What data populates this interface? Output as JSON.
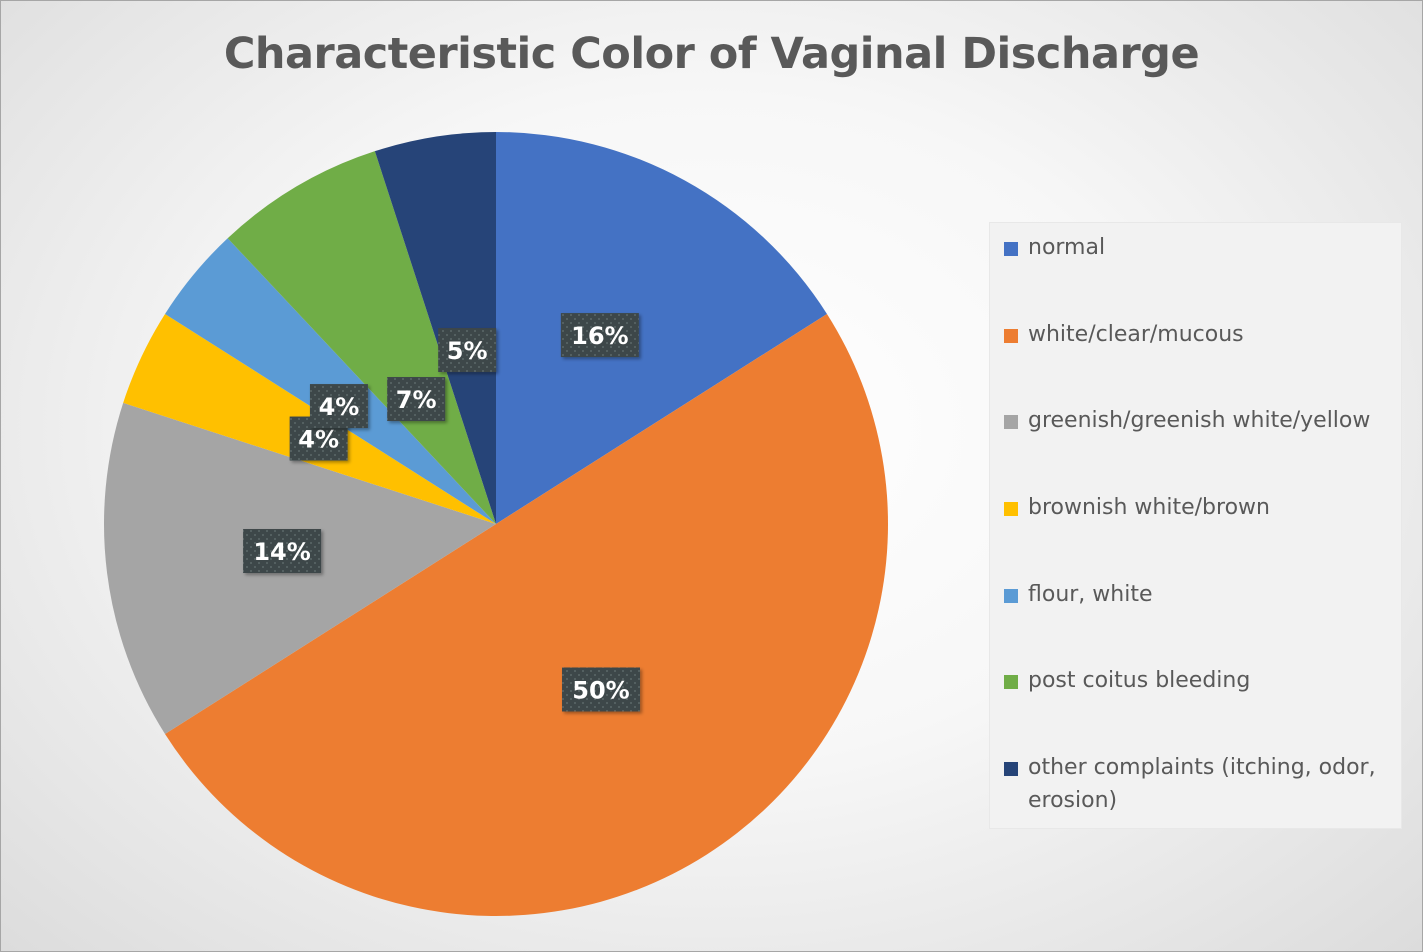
{
  "chart_data": {
    "type": "pie",
    "title": "Characteristic Color of Vaginal Discharge",
    "categories": [
      "normal",
      "white/clear/mucous",
      "greenish/greenish white/yellow",
      "brownish white/brown",
      "flour, white",
      "post coitus bleeding",
      "other complaints (itching, odor, erosion)"
    ],
    "values": [
      16,
      50,
      14,
      4,
      4,
      7,
      5
    ],
    "data_labels": [
      "16%",
      "50%",
      "14%",
      "4%",
      "4%",
      "7%",
      "5%"
    ],
    "colors": [
      "#4472c4",
      "#ed7d31",
      "#a5a5a5",
      "#ffc000",
      "#5b9bd5",
      "#70ad47",
      "#264478"
    ],
    "legend_position": "right",
    "start": "top, clockwise"
  }
}
